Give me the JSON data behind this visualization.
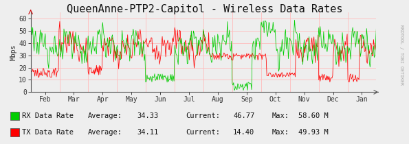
{
  "title": "QueenAnne-PTP2-Capitol - Wireless Data Rates",
  "ylabel": "Mbps",
  "ylim": [
    0,
    65
  ],
  "yticks": [
    0,
    10,
    20,
    30,
    40,
    50,
    60
  ],
  "x_labels": [
    "Feb",
    "Mar",
    "Apr",
    "May",
    "Jun",
    "Jul",
    "Aug",
    "Sep",
    "Oct",
    "Nov",
    "Dec",
    "Jan"
  ],
  "rx_color": "#00cc00",
  "tx_color": "#ff0000",
  "grid_color": "#ffbbbb",
  "bg_color": "#eeeeee",
  "plot_bg_color": "#eeeeee",
  "legend": [
    {
      "label": "RX Data Rate",
      "avg": "34.33",
      "cur": "46.77",
      "max": "58.60 M",
      "color": "#00cc00"
    },
    {
      "label": "TX Data Rate",
      "avg": "34.11",
      "cur": "14.40",
      "max": "49.93 M",
      "color": "#ff0000"
    }
  ],
  "rrdtool_text": "RRDTOOL / TOBI OETIKER",
  "title_fontsize": 11,
  "axis_fontsize": 7,
  "legend_fontsize": 7.5
}
